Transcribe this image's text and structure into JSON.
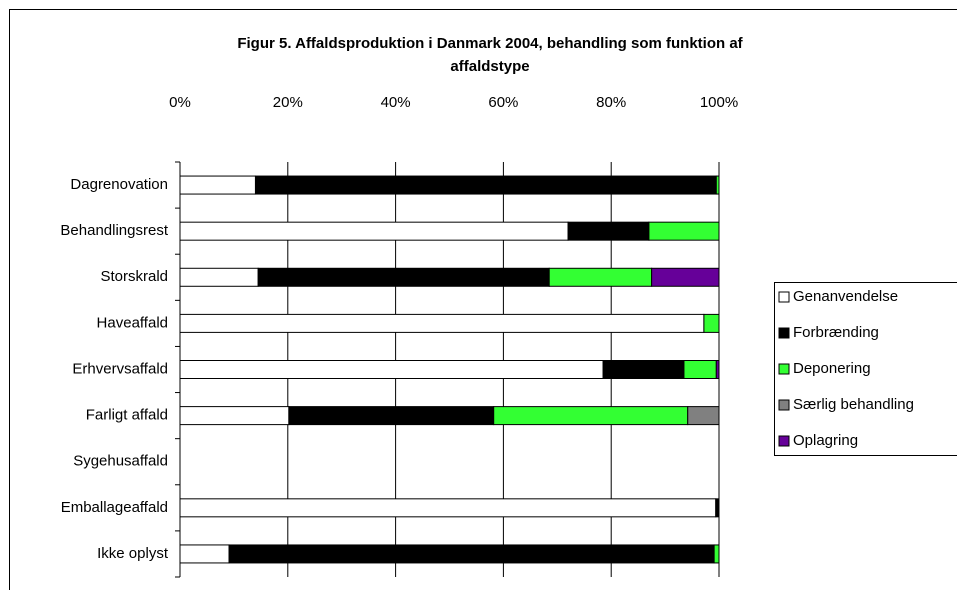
{
  "chart_data": {
    "type": "stacked_barh",
    "title": [
      "Figur 5. Affaldsproduktion i Danmark 2004, behandling som funktion af",
      "affaldstype"
    ],
    "categories": [
      "Dagrenovation",
      "Behandlingsrest",
      "Storskrald",
      "Haveaffald",
      "Erhvervsaffald",
      "Farligt affald",
      "Sygehusaffald",
      "Emballageaffald",
      "Ikke oplyst"
    ],
    "series": [
      {
        "name": "Genanvendelse",
        "color": "#ffffff",
        "values": [
          14,
          72,
          14.5,
          97.2,
          78.5,
          20.2,
          0,
          99.4,
          9.1
        ]
      },
      {
        "name": "Forbrænding",
        "color": "#000000",
        "values": [
          85.5,
          15,
          54,
          0,
          15,
          38,
          0,
          0.6,
          90
        ]
      },
      {
        "name": "Deponering",
        "color": "#33ff33",
        "values": [
          0.5,
          13,
          19,
          2.8,
          6,
          36,
          0,
          0,
          0.9
        ]
      },
      {
        "name": "Særlig behandling",
        "color": "#808080",
        "values": [
          0,
          0,
          0,
          0,
          0,
          5.8,
          0,
          0,
          0
        ]
      },
      {
        "name": "Oplagring",
        "color": "#660099",
        "values": [
          0,
          0,
          12.5,
          0,
          0.5,
          0,
          0,
          0,
          0
        ]
      }
    ],
    "xlim": [
      0,
      100
    ],
    "xticks": [
      {
        "value": 0,
        "label": "0%"
      },
      {
        "value": 20,
        "label": "20%"
      },
      {
        "value": 40,
        "label": "40%"
      },
      {
        "value": 60,
        "label": "60%"
      },
      {
        "value": 80,
        "label": "80%"
      },
      {
        "value": 100,
        "label": "100%"
      }
    ],
    "grid": true,
    "legend": "right"
  }
}
